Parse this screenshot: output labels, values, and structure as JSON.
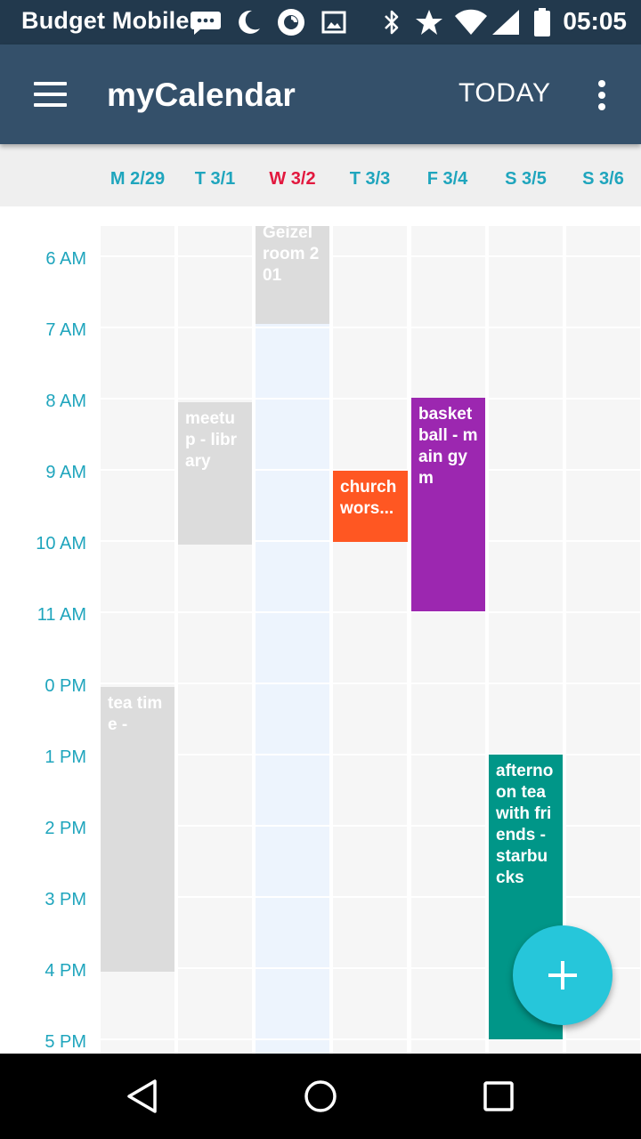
{
  "status_bar": {
    "carrier": "Budget Mobile",
    "time": "05:05",
    "icons": [
      "message-icon",
      "do-not-disturb-icon",
      "app-notification-icon",
      "image-icon",
      "bluetooth-icon",
      "star-icon",
      "wifi-icon",
      "cell-signal-icon",
      "battery-icon"
    ]
  },
  "app_bar": {
    "menu_icon": "hamburger-menu-icon",
    "title": "myCalendar",
    "today_label": "TODAY",
    "overflow_icon": "more-vertical-icon",
    "color": "#34506a"
  },
  "week": {
    "days": [
      {
        "label": "M 2/29",
        "today": false
      },
      {
        "label": "T 3/1",
        "today": false
      },
      {
        "label": "W 3/2",
        "today": true
      },
      {
        "label": "T 3/3",
        "today": false
      },
      {
        "label": "F 3/4",
        "today": false
      },
      {
        "label": "S 3/5",
        "today": false
      },
      {
        "label": "S 3/6",
        "today": false
      }
    ],
    "today_color": "#e2183e",
    "day_color": "#1fa5bd"
  },
  "time_labels": [
    "6 AM",
    "7 AM",
    "8 AM",
    "9 AM",
    "10 AM",
    "11 AM",
    "0 PM",
    "1 PM",
    "2 PM",
    "3 PM",
    "4 PM",
    "5 PM"
  ],
  "events": [
    {
      "text": "Geizel room 201",
      "color": "#dcdcdc"
    },
    {
      "text": "meetup - library",
      "color": "#dcdcdc"
    },
    {
      "text": "church wors...",
      "color": "#ff5722"
    },
    {
      "text": "basketball - main gym",
      "color": "#9c27b0"
    },
    {
      "text": "tea time -",
      "color": "#dcdcdc"
    },
    {
      "text": "afternoon tea with friends - starbucks",
      "color": "#009688"
    }
  ],
  "fab": {
    "icon": "plus-icon",
    "color": "#26c6da"
  },
  "nav_bar": {
    "icons": [
      "back-triangle-icon",
      "home-circle-icon",
      "recents-square-icon"
    ]
  }
}
